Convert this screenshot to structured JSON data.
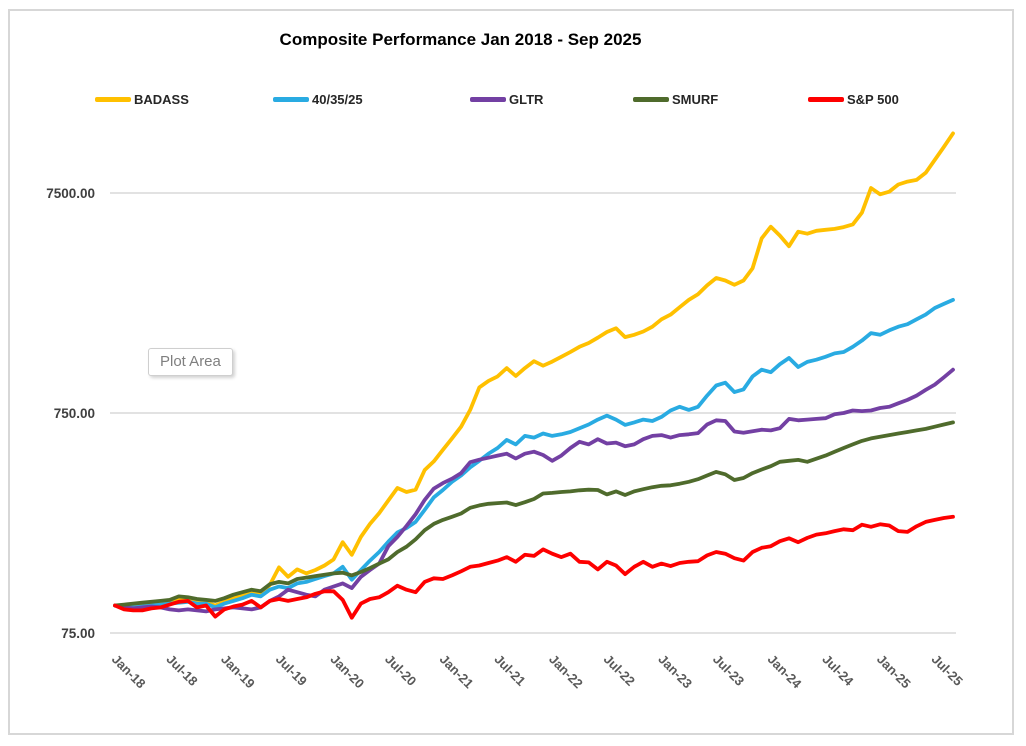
{
  "window": {
    "background": "#ffffff",
    "frame_border_color": "#d7d7d7",
    "gridline_color": "#d9d9d9"
  },
  "plot_area_tooltip": "Plot Area",
  "chart_data": {
    "type": "line",
    "title": "Composite Performance Jan 2018 - Sep 2025",
    "legend_position": "top",
    "grid": "horizontal-only",
    "x_start": "Jan-2018",
    "x_end": "Sep-2025",
    "x_points_monthly": 93,
    "x_tick_labels": [
      "Jan-18",
      "Jul-18",
      "Jan-19",
      "Jul-19",
      "Jan-20",
      "Jul-20",
      "Jan-21",
      "Jul-21",
      "Jan-22",
      "Jul-22",
      "Jan-23",
      "Jul-23",
      "Jan-24",
      "Jul-24",
      "Jan-25",
      "Jul-25"
    ],
    "x_tick_every_months": 6,
    "y_axis": {
      "scale": "log",
      "tick_values": [
        75,
        750,
        7500
      ],
      "tick_labels": [
        "75.00",
        "750.00",
        "7500.00"
      ],
      "min": 75,
      "max_displayed": 14000
    },
    "series": [
      {
        "name": "BADASS",
        "color": "#FFC000",
        "values": [
          100,
          99,
          98,
          100,
          102,
          103,
          105,
          106,
          107,
          104,
          103,
          100,
          104,
          108,
          112,
          116,
          113,
          124,
          149,
          135,
          146,
          140,
          145,
          152,
          162,
          194,
          170,
          205,
          235,
          263,
          300,
          342,
          328,
          336,
          413,
          452,
          510,
          575,
          650,
          775,
          980,
          1050,
          1100,
          1200,
          1105,
          1200,
          1290,
          1230,
          1285,
          1350,
          1420,
          1500,
          1560,
          1650,
          1750,
          1820,
          1660,
          1700,
          1760,
          1850,
          2000,
          2100,
          2270,
          2450,
          2600,
          2850,
          3080,
          3000,
          2870,
          3000,
          3415,
          4670,
          5270,
          4800,
          4300,
          5000,
          4900,
          5050,
          5100,
          5150,
          5250,
          5400,
          6100,
          7900,
          7400,
          7600,
          8200,
          8450,
          8600,
          9270,
          10600,
          12150,
          14000
        ]
      },
      {
        "name": "40/35/25",
        "color": "#29ABE2",
        "values": [
          100,
          99,
          98,
          99,
          100,
          101,
          102,
          103,
          104,
          102,
          102,
          98,
          102,
          105,
          108,
          112,
          110,
          118,
          122,
          120,
          126,
          128,
          132,
          136,
          140,
          150,
          131,
          145,
          160,
          175,
          195,
          215,
          225,
          240,
          272,
          310,
          335,
          365,
          390,
          425,
          455,
          490,
          520,
          566,
          540,
          590,
          580,
          605,
          590,
          600,
          615,
          640,
          665,
          700,
          730,
          700,
          662,
          680,
          700,
          690,
          720,
          770,
          800,
          775,
          800,
          900,
          1000,
          1030,
          933,
          960,
          1100,
          1180,
          1150,
          1250,
          1334,
          1214,
          1280,
          1310,
          1350,
          1400,
          1420,
          1500,
          1600,
          1730,
          1700,
          1780,
          1850,
          1900,
          2000,
          2100,
          2250,
          2350,
          2450
        ]
      },
      {
        "name": "GLTR",
        "color": "#7340A3",
        "values": [
          100,
          98,
          97,
          98,
          99,
          98,
          96,
          95,
          96,
          95,
          94,
          96,
          97,
          98,
          97,
          96,
          98,
          105,
          110,
          118,
          115,
          112,
          110,
          118,
          122,
          126,
          120,
          135,
          145,
          155,
          186,
          205,
          230,
          260,
          302,
          340,
          360,
          377,
          400,
          448,
          460,
          470,
          480,
          490,
          466,
          490,
          500,
          483,
          455,
          480,
          520,
          555,
          540,
          570,
          545,
          550,
          530,
          540,
          570,
          590,
          595,
          580,
          595,
          600,
          608,
          665,
          695,
          690,
          618,
          610,
          620,
          630,
          625,
          640,
          705,
          695,
          700,
          705,
          710,
          740,
          750,
          770,
          765,
          770,
          790,
          800,
          830,
          860,
          900,
          955,
          1010,
          1090,
          1180
        ]
      },
      {
        "name": "SMURF",
        "color": "#4F6B2C",
        "values": [
          100,
          101,
          102,
          103,
          104,
          105,
          106,
          110,
          109,
          107,
          106,
          105,
          108,
          112,
          115,
          118,
          116,
          125,
          128,
          126,
          132,
          134,
          136,
          138,
          140,
          141,
          137,
          142,
          148,
          155,
          162,
          175,
          185,
          200,
          220,
          235,
          245,
          253,
          262,
          278,
          285,
          290,
          292,
          294,
          286,
          295,
          305,
          323,
          325,
          328,
          330,
          334,
          336,
          335,
          320,
          330,
          318,
          330,
          338,
          345,
          350,
          352,
          358,
          365,
          375,
          390,
          405,
          395,
          372,
          380,
          400,
          415,
          430,
          450,
          455,
          459,
          450,
          465,
          480,
          500,
          520,
          540,
          560,
          575,
          585,
          595,
          605,
          615,
          625,
          635,
          650,
          665,
          680
        ]
      },
      {
        "name": "S&P 500",
        "color": "#FE0000",
        "values": [
          100,
          96,
          95,
          95,
          97,
          98,
          101,
          104,
          105,
          98,
          100,
          89,
          96,
          99,
          101,
          105,
          98,
          105,
          107,
          105,
          107,
          109,
          113,
          116,
          116,
          106,
          88,
          102,
          107,
          109,
          115,
          123,
          118,
          115,
          128,
          133,
          132,
          137,
          143,
          150,
          152,
          156,
          160,
          166,
          158,
          170,
          168,
          180,
          172,
          166,
          172,
          158,
          157,
          146,
          158,
          152,
          139,
          150,
          158,
          150,
          155,
          151,
          156,
          158,
          159,
          169,
          175,
          172,
          164,
          160,
          175,
          183,
          186,
          196,
          202,
          194,
          203,
          210,
          213,
          218,
          222,
          220,
          233,
          228,
          234,
          231,
          218,
          216,
          229,
          240,
          245,
          250,
          253
        ]
      }
    ]
  }
}
